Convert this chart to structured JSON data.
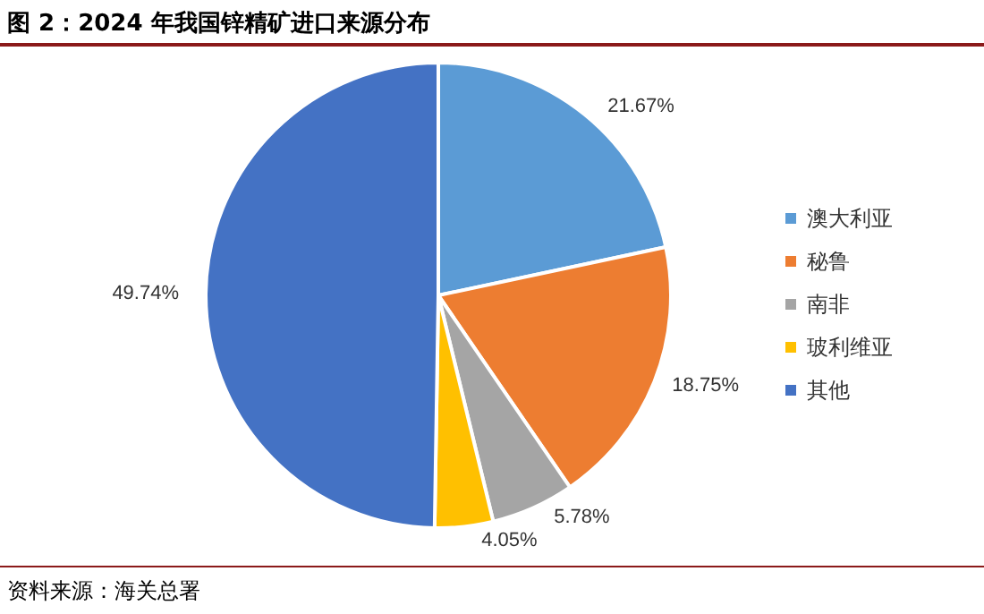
{
  "chart_data": {
    "type": "pie",
    "title": "图 2：2024 年我国锌精矿进口来源分布",
    "categories": [
      "澳大利亚",
      "秘鲁",
      "南非",
      "玻利维亚",
      "其他"
    ],
    "values": [
      21.67,
      18.75,
      5.78,
      4.05,
      49.74
    ],
    "colors": [
      "#5b9bd5",
      "#ed7d31",
      "#a5a5a5",
      "#ffc000",
      "#4472c4"
    ],
    "value_labels": [
      "21.67%",
      "18.75%",
      "5.78%",
      "4.05%",
      "49.74%"
    ],
    "legend": "right",
    "annotations": [
      "资料来源：海关总署"
    ]
  }
}
